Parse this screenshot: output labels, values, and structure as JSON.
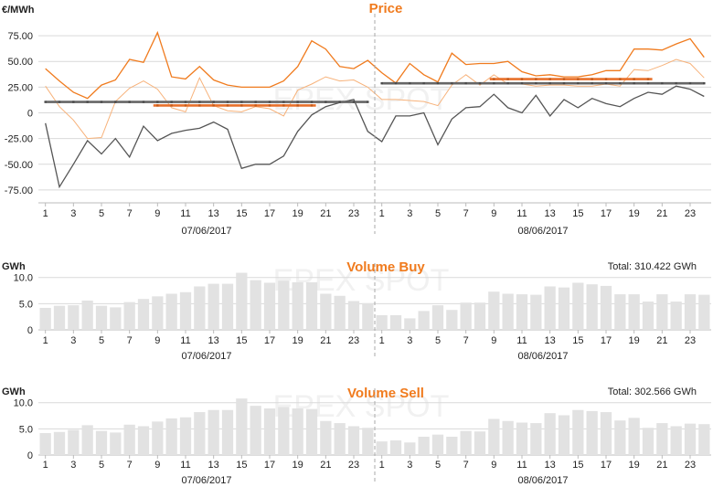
{
  "watermark": "EPEX SPOT",
  "dates": [
    "07/06/2017",
    "08/06/2017"
  ],
  "hour_ticks": [
    "1",
    "3",
    "5",
    "7",
    "9",
    "11",
    "13",
    "15",
    "17",
    "19",
    "21",
    "23"
  ],
  "colors": {
    "accent": "#f07b1e",
    "light_orange": "#f7b27a",
    "dark_gray": "#555555",
    "base_gray": "#666666",
    "peak_orange": "#e8712b",
    "bar_gray": "#e2e2e2",
    "grid": "#d9d9d9"
  },
  "chart_data": [
    {
      "id": "price",
      "type": "line",
      "title": "Price",
      "unit": "€/MWh",
      "ylim": [
        -87.5,
        87.5
      ],
      "ytick_values": [
        75,
        50,
        25,
        0,
        -25,
        -50,
        -75
      ],
      "ytick_labels": [
        "75.00",
        "50.00",
        "25.00",
        "0",
        "-25.00",
        "-50.00",
        "-75.00"
      ],
      "x": [
        1,
        2,
        3,
        4,
        5,
        6,
        7,
        8,
        9,
        10,
        11,
        12,
        13,
        14,
        15,
        16,
        17,
        18,
        19,
        20,
        21,
        22,
        23,
        24,
        25,
        26,
        27,
        28,
        29,
        30,
        31,
        32,
        33,
        34,
        35,
        36,
        37,
        38,
        39,
        40,
        41,
        42,
        43,
        44,
        45,
        46,
        47,
        48
      ],
      "series": [
        {
          "key": "max",
          "color": "#f07b1e",
          "values": [
            43,
            31,
            20,
            14,
            27,
            32,
            52,
            49,
            78,
            35,
            33,
            45,
            32,
            27,
            25,
            25,
            25,
            31,
            45,
            70,
            62,
            45,
            43,
            51,
            39,
            29,
            48,
            37,
            30,
            58,
            47,
            48,
            48,
            50,
            40,
            36,
            37,
            35,
            35,
            37,
            41,
            41,
            62,
            62,
            61,
            67,
            72,
            54
          ]
        },
        {
          "key": "avg",
          "color": "#f7b27a",
          "values": [
            26,
            6,
            -7,
            -25,
            -24,
            11,
            24,
            31,
            23,
            5,
            1,
            34,
            7,
            2,
            1,
            6,
            4,
            -3,
            22,
            28,
            35,
            31,
            32,
            25,
            13,
            13,
            12,
            11,
            7,
            27,
            37,
            27,
            37,
            28,
            28,
            26,
            27,
            27,
            26,
            26,
            28,
            26,
            42,
            41,
            46,
            52,
            48,
            34
          ]
        },
        {
          "key": "min",
          "color": "#555555",
          "values": [
            -10,
            -72,
            -50,
            -27,
            -40,
            -25,
            -43,
            -13,
            -27,
            -20,
            -17,
            -15,
            -9,
            -16,
            -54,
            -50,
            -50,
            -42,
            -18,
            -2,
            6,
            10,
            13,
            -18,
            -28,
            -3,
            -3,
            0,
            -31,
            -6,
            5,
            6,
            18,
            5,
            0,
            17,
            -3,
            13,
            5,
            14,
            9,
            6,
            14,
            20,
            18,
            26,
            23,
            16
          ]
        }
      ],
      "base": [
        {
          "day": 1,
          "value": 10.6,
          "color": "#666666"
        },
        {
          "day": 2,
          "value": 28.7,
          "color": "#666666"
        }
      ],
      "peak": [
        {
          "day": 1,
          "from": 9,
          "to": 20,
          "value": 7.2,
          "color": "#e8712b"
        },
        {
          "day": 2,
          "from": 9,
          "to": 20,
          "value": 32.8,
          "color": "#e8712b"
        }
      ]
    },
    {
      "id": "buy",
      "type": "bar",
      "title": "Volume Buy",
      "unit": "GWh",
      "total_label": "Total: 310.422 GWh",
      "ylim": [
        0,
        11.0
      ],
      "ytick_values": [
        0,
        5,
        10
      ],
      "ytick_labels": [
        "0",
        "5.0",
        "10.0"
      ],
      "values": [
        4.2,
        4.6,
        4.7,
        5.6,
        4.6,
        4.3,
        5.3,
        5.9,
        6.4,
        6.9,
        7.2,
        8.3,
        8.8,
        8.8,
        10.9,
        9.5,
        9.0,
        9.4,
        9.1,
        9.1,
        6.9,
        6.5,
        5.5,
        5.1,
        2.8,
        2.8,
        2.2,
        3.6,
        4.7,
        3.8,
        5.2,
        5.2,
        7.3,
        6.9,
        6.8,
        6.7,
        8.3,
        8.1,
        9.0,
        8.7,
        8.4,
        6.8,
        6.8,
        5.4,
        6.8,
        5.4,
        6.8,
        6.7
      ]
    },
    {
      "id": "sell",
      "type": "bar",
      "title": "Volume Sell",
      "unit": "GWh",
      "total_label": "Total: 302.566 GWh",
      "ylim": [
        0,
        11.0
      ],
      "ytick_values": [
        0,
        5,
        10
      ],
      "ytick_labels": [
        "0",
        "5.0",
        "10.0"
      ],
      "values": [
        4.2,
        4.4,
        4.8,
        5.7,
        4.6,
        4.3,
        5.8,
        5.5,
        6.4,
        7.0,
        7.2,
        8.2,
        8.6,
        8.6,
        10.8,
        9.4,
        8.9,
        9.2,
        8.9,
        8.8,
        6.5,
        6.1,
        5.5,
        5.2,
        2.6,
        2.8,
        2.4,
        3.5,
        3.9,
        3.5,
        4.6,
        4.5,
        6.9,
        6.5,
        6.2,
        6.1,
        8.0,
        7.6,
        8.6,
        8.4,
        8.2,
        6.6,
        7.1,
        5.2,
        6.1,
        5.5,
        6.0,
        5.9
      ]
    }
  ]
}
